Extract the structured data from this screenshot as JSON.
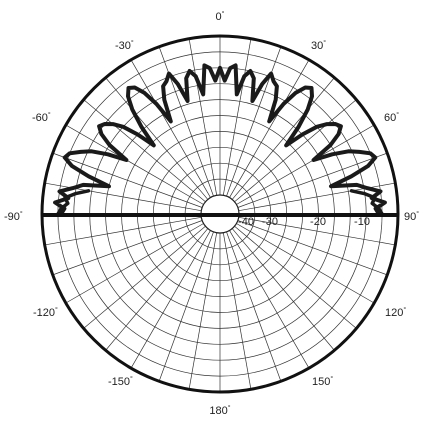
{
  "chart_data": {
    "type": "line",
    "projection": "polar",
    "title": "",
    "theta_direction": "clockwise",
    "theta_zero": "top",
    "angle_ticks": [
      {
        "value": 0,
        "label": "0"
      },
      {
        "value": 30,
        "label": "30"
      },
      {
        "value": 60,
        "label": "60"
      },
      {
        "value": 90,
        "label": "90"
      },
      {
        "value": 120,
        "label": "120"
      },
      {
        "value": 150,
        "label": "150"
      },
      {
        "value": 180,
        "label": "180"
      },
      {
        "value": -150,
        "label": "-150"
      },
      {
        "value": -120,
        "label": "-120"
      },
      {
        "value": -90,
        "label": "-90"
      },
      {
        "value": -60,
        "label": "-60"
      },
      {
        "value": -30,
        "label": "-30"
      }
    ],
    "angle_unit_symbol": "°",
    "radial_range": [
      -50,
      0
    ],
    "radial_ticks": [
      {
        "value": -40,
        "label": "-40"
      },
      {
        "value": -30,
        "label": "-30"
      },
      {
        "value": -20,
        "label": "-20"
      },
      {
        "value": -10,
        "label": "-10"
      }
    ],
    "grid": true,
    "grid_angle_step": 10,
    "grid_radius_step": 5,
    "series": [
      {
        "color": "#1a1a1a",
        "theta": [
          -90,
          -88,
          -86,
          -84,
          -82,
          -80,
          -78,
          -76,
          -74,
          -72,
          -70,
          -68,
          -66,
          -64,
          -62,
          -60,
          -58,
          -56,
          -54,
          -52,
          -50,
          -48,
          -46,
          -44,
          -42,
          -40,
          -38,
          -36,
          -34,
          -32,
          -30,
          -28,
          -26,
          -24,
          -22,
          -20,
          -18,
          -16,
          -14,
          -12,
          -10,
          -8,
          -6,
          -4,
          -2,
          0,
          2,
          4,
          6,
          8,
          10,
          12,
          14,
          16,
          18,
          20,
          22,
          24,
          26,
          28,
          30,
          32,
          34,
          36,
          38,
          40,
          42,
          44,
          46,
          48,
          50,
          52,
          54,
          56,
          58,
          60,
          62,
          64,
          66,
          68,
          70,
          72,
          74,
          76,
          78,
          80,
          82,
          84,
          86,
          88,
          90
        ],
        "r": [
          -6,
          -7,
          -4,
          -8,
          -5,
          -9,
          -12,
          -20,
          -13,
          -7,
          -4,
          -5,
          -8,
          -11,
          -16,
          -22,
          -15,
          -11,
          -9,
          -10,
          -12,
          -15,
          -20,
          -26,
          -19,
          -13,
          -9,
          -7,
          -8,
          -11,
          -16,
          -23,
          -16,
          -12,
          -11,
          -9,
          -13,
          -19,
          -12,
          -10,
          -12,
          -18,
          -9,
          -10,
          -14,
          -10,
          -14,
          -10,
          -9,
          -18,
          -12,
          -10,
          -12,
          -19,
          -13,
          -9,
          -11,
          -12,
          -16,
          -23,
          -16,
          -11,
          -8,
          -7,
          -9,
          -13,
          -19,
          -26,
          -20,
          -15,
          -12,
          -10,
          -9,
          -11,
          -15,
          -22,
          -16,
          -11,
          -8,
          -5,
          -4,
          -7,
          -13,
          -20,
          -12,
          -9,
          -5,
          -8,
          -4,
          -7,
          -6
        ]
      },
      {
        "color": "#1a1a1a",
        "theta": [
          -90,
          -88,
          -86,
          -84,
          -82,
          -80,
          80,
          82,
          84,
          86,
          88,
          90
        ],
        "r": [
          -5,
          -6,
          -8,
          -7,
          -10,
          -14,
          -14,
          -10,
          -7,
          -8,
          -6,
          -5
        ]
      }
    ]
  }
}
